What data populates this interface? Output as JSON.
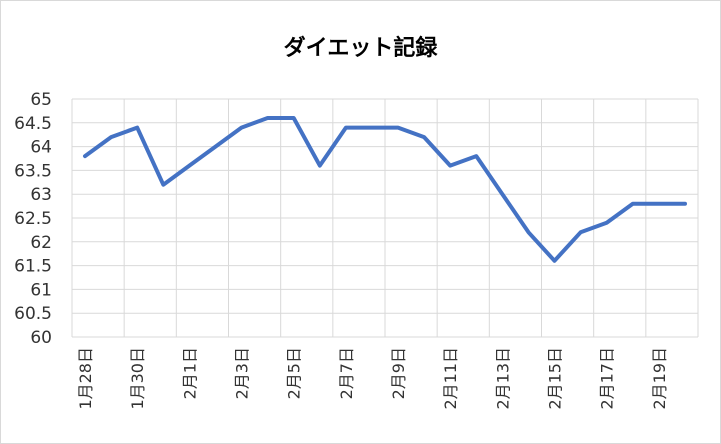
{
  "chart_data": {
    "type": "line",
    "title": "ダイエット記録",
    "xlabel": "",
    "ylabel": "",
    "ylim": [
      60,
      65
    ],
    "yticks": [
      "60",
      "60.5",
      "61",
      "61.5",
      "62",
      "62.5",
      "63",
      "63.5",
      "64",
      "64.5",
      "65"
    ],
    "x": [
      "1月28日",
      "1月29日",
      "1月30日",
      "1月31日",
      "2月1日",
      "2月2日",
      "2月3日",
      "2月4日",
      "2月5日",
      "2月6日",
      "2月7日",
      "2月8日",
      "2月9日",
      "2月10日",
      "2月11日",
      "2月12日",
      "2月13日",
      "2月14日",
      "2月15日",
      "2月16日",
      "2月17日",
      "2月18日",
      "2月19日",
      "2月20日"
    ],
    "xtick_labels": [
      "1月28日",
      "1月30日",
      "2月1日",
      "2月3日",
      "2月5日",
      "2月7日",
      "2月9日",
      "2月11日",
      "2月13日",
      "2月15日",
      "2月17日",
      "2月19日"
    ],
    "series": [
      {
        "values": [
          63.8,
          64.2,
          64.4,
          63.2,
          63.6,
          64.0,
          64.4,
          64.6,
          64.6,
          63.6,
          64.4,
          64.4,
          64.4,
          64.2,
          63.6,
          63.8,
          63.0,
          62.2,
          61.6,
          62.2,
          62.4,
          62.8,
          62.8,
          62.8
        ],
        "color": "#4472c4"
      }
    ],
    "grid": true,
    "legend": "none"
  }
}
